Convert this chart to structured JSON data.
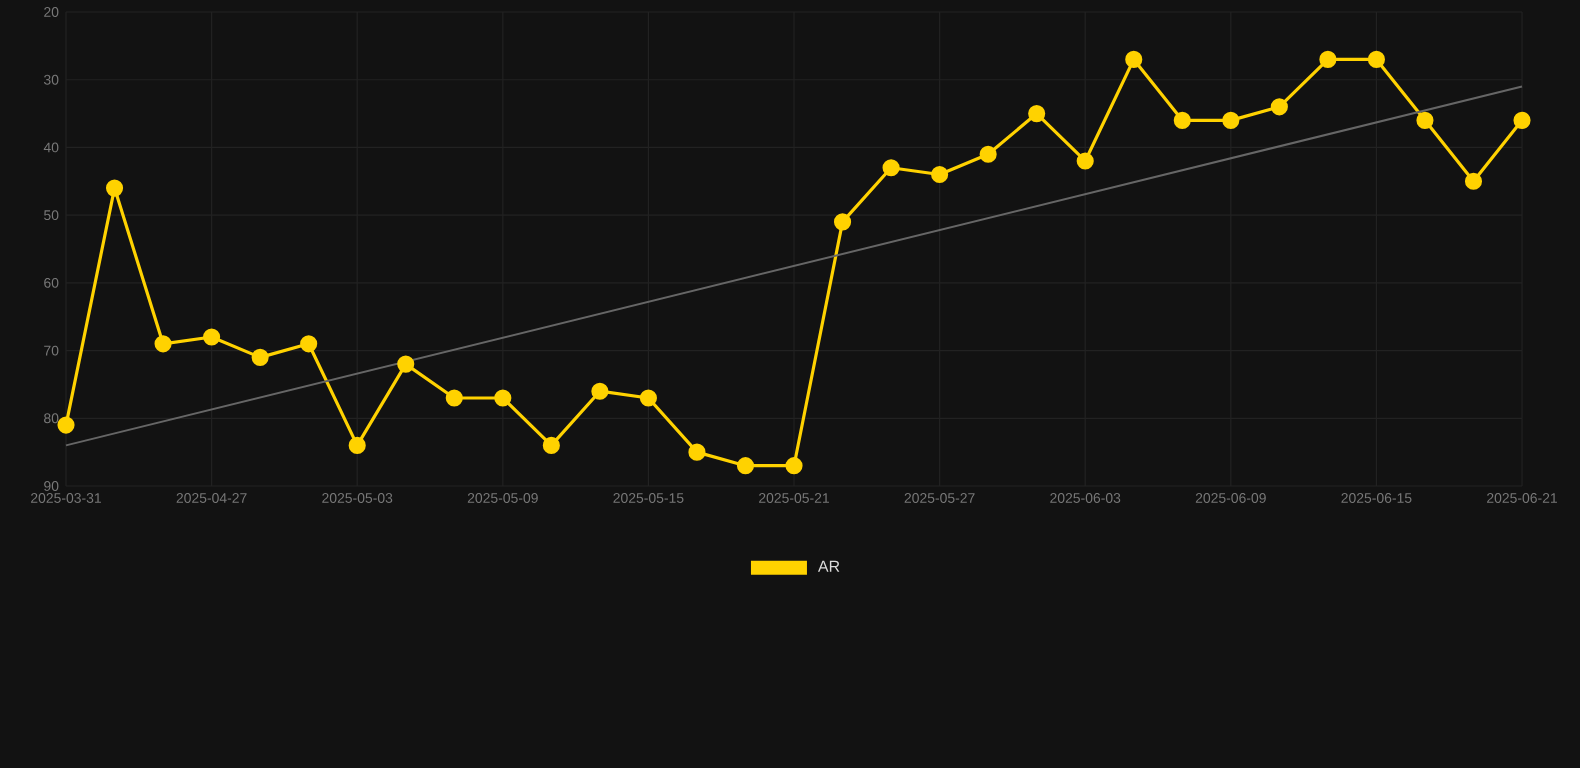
{
  "chart_data": {
    "type": "line",
    "categories": [
      "2025-03-31",
      null,
      null,
      "2025-04-27",
      null,
      null,
      "2025-05-03",
      null,
      null,
      "2025-05-09",
      null,
      null,
      "2025-05-15",
      null,
      null,
      "2025-05-21",
      null,
      null,
      "2025-05-27",
      null,
      null,
      "2025-06-03",
      null,
      null,
      "2025-06-09",
      null,
      null,
      "2025-06-15",
      null,
      null,
      "2025-06-21"
    ],
    "series": [
      {
        "name": "AR",
        "color": "#ffd200",
        "marker": "circle",
        "values": [
          81,
          46,
          69,
          68,
          71,
          69,
          84,
          72,
          77,
          77,
          84,
          76,
          77,
          85,
          87,
          87,
          51,
          43,
          44,
          41,
          35,
          42,
          27,
          36,
          36,
          34,
          27,
          27,
          36,
          45,
          36
        ]
      },
      {
        "type": "line",
        "color": "#666666",
        "marker": "none",
        "values": [
          84,
          null,
          null,
          null,
          null,
          null,
          null,
          null,
          null,
          null,
          null,
          null,
          null,
          null,
          null,
          null,
          null,
          null,
          null,
          null,
          null,
          null,
          null,
          null,
          null,
          null,
          null,
          null,
          null,
          null,
          31
        ]
      }
    ],
    "ylim": [
      90,
      20
    ],
    "yticks": [
      20,
      30,
      40,
      50,
      60,
      70,
      80,
      90
    ],
    "grid": true,
    "legend": "bottom"
  }
}
